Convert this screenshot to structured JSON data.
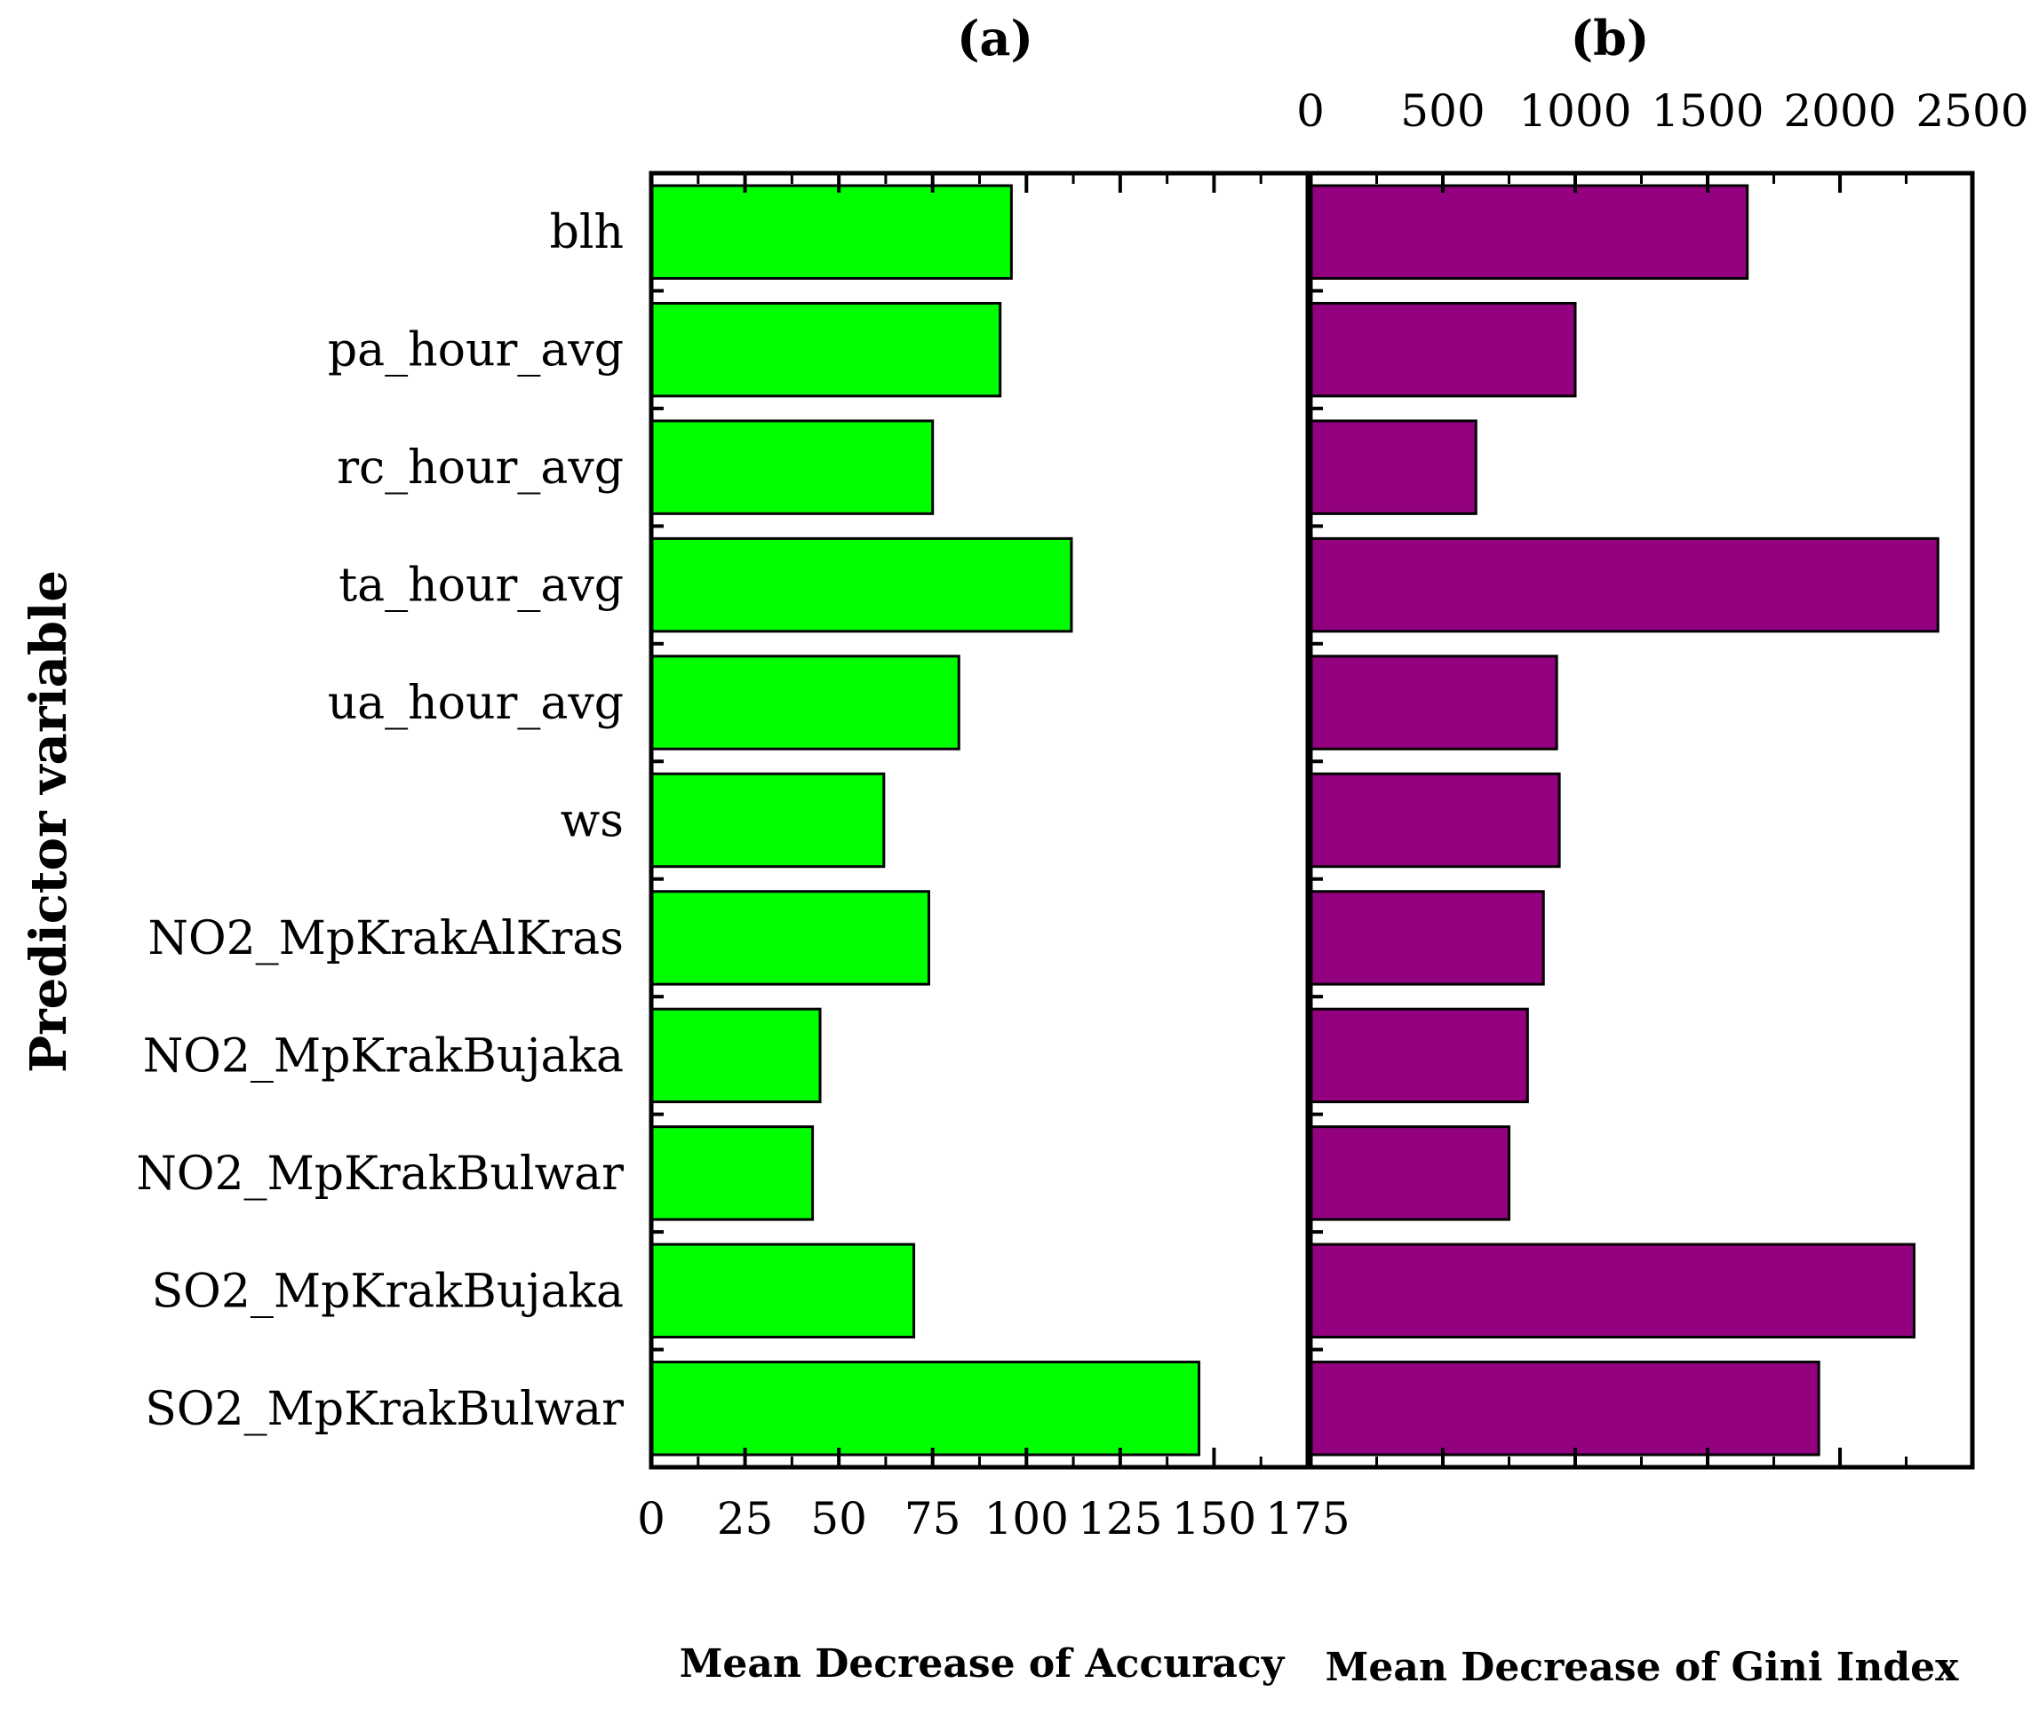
{
  "chart_data": [
    {
      "type": "bar",
      "orientation": "horizontal",
      "panel": "(a)",
      "title": "(a)",
      "xlabel": "Mean Decrease of Accuracy",
      "ylabel": "Predictor variable",
      "xlim": [
        0,
        175
      ],
      "xticks": [
        "0",
        "25",
        "50",
        "75",
        "100",
        "125",
        "150",
        "175"
      ],
      "tick_position": "bottom",
      "color": "#00ff00",
      "categories": [
        "blh",
        "pa_hour_avg",
        "rc_hour_avg",
        "ta_hour_avg",
        "ua_hour_avg",
        "ws",
        "NO2_MpKrakAlKras",
        "NO2_MpKrakBujaka",
        "NO2_MpKrakBulwar",
        "SO2_MpKrakBujaka",
        "SO2_MpKrakBulwar"
      ],
      "values": [
        96,
        93,
        75,
        112,
        82,
        62,
        74,
        45,
        43,
        70,
        146
      ]
    },
    {
      "type": "bar",
      "orientation": "horizontal",
      "panel": "(b)",
      "title": "(b)",
      "xlabel": "Mean Decrease of Gini Index",
      "ylabel": "Predictor variable",
      "xlim": [
        0,
        2500
      ],
      "xticks": [
        "0",
        "500",
        "1000",
        "1500",
        "2000",
        "2500"
      ],
      "tick_position": "top",
      "color": "#930080",
      "categories": [
        "blh",
        "pa_hour_avg",
        "rc_hour_avg",
        "ta_hour_avg",
        "ua_hour_avg",
        "ws",
        "NO2_MpKrakAlKras",
        "NO2_MpKrakBujaka",
        "NO2_MpKrakBulwar",
        "SO2_MpKrakBujaka",
        "SO2_MpKrakBulwar"
      ],
      "values": [
        1650,
        1000,
        625,
        2370,
        930,
        940,
        880,
        820,
        750,
        2280,
        1920
      ]
    }
  ]
}
